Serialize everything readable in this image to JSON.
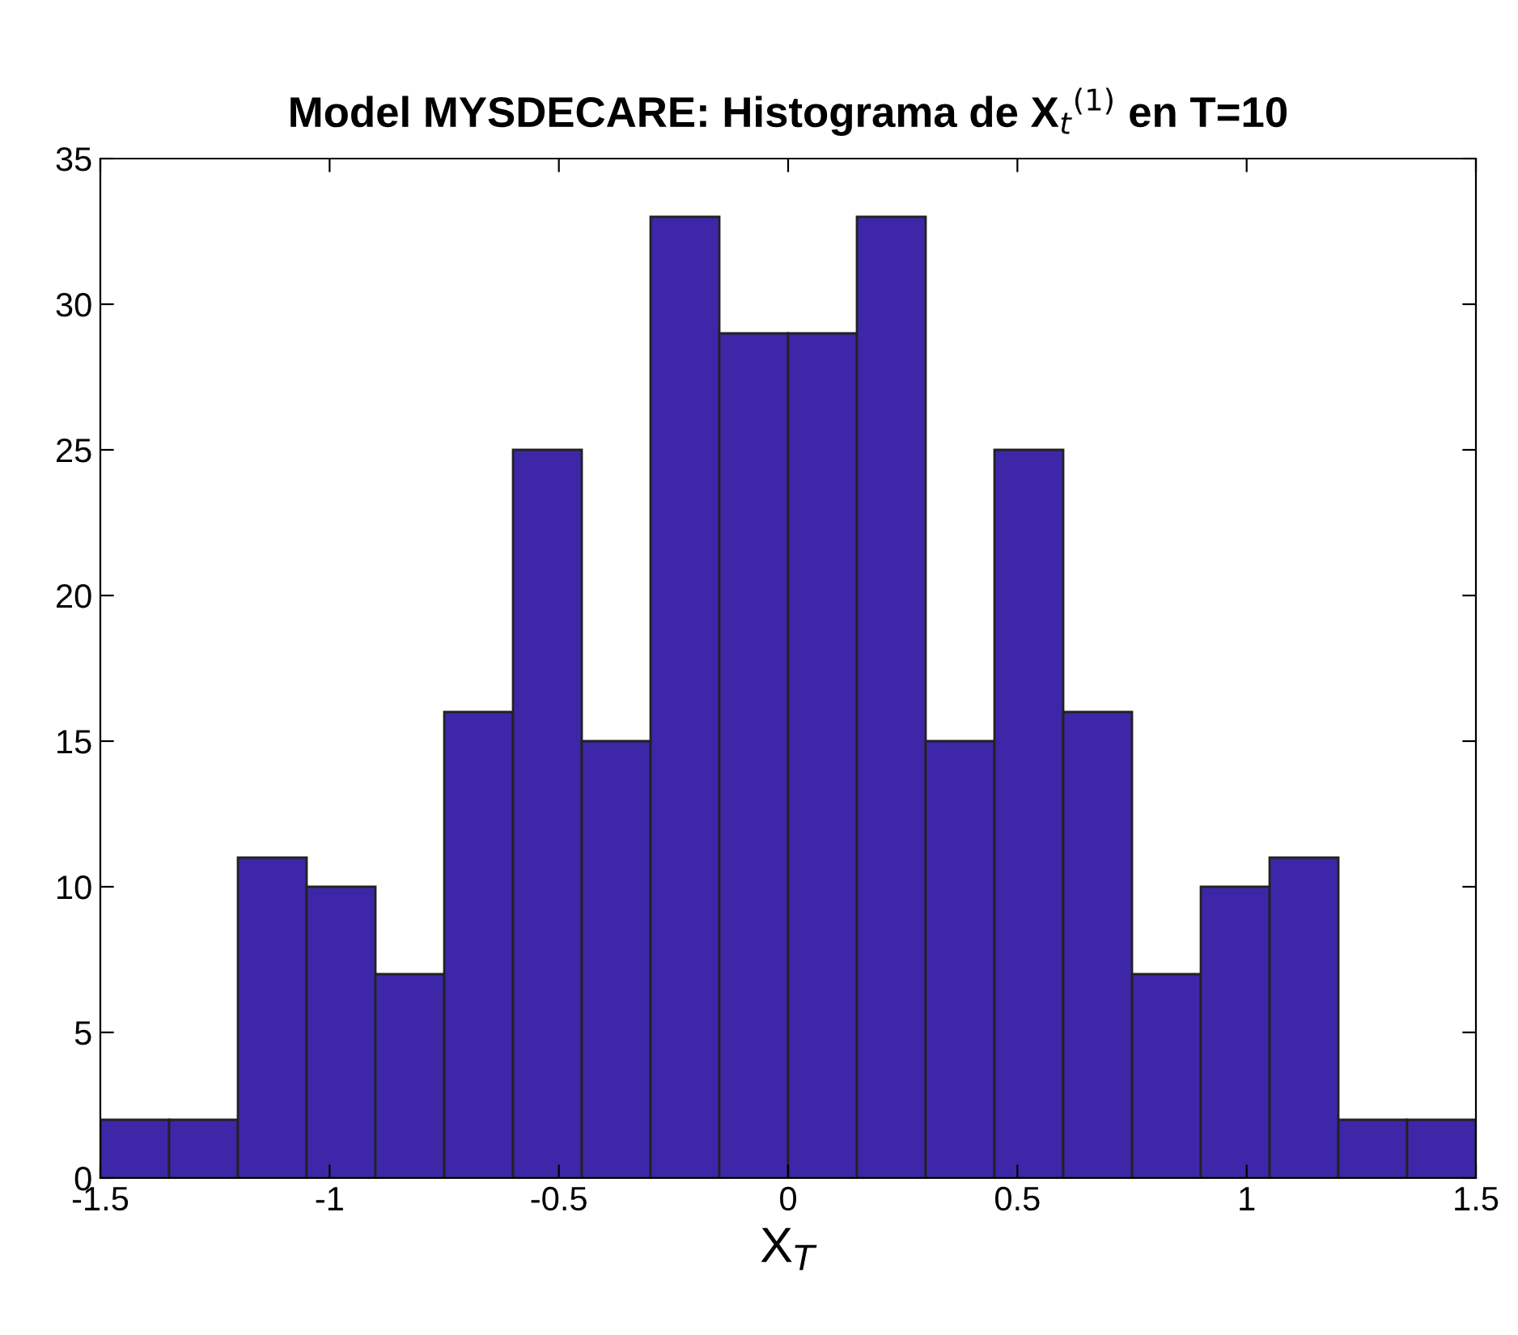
{
  "chart_data": {
    "type": "histogram",
    "title": "Model MYSDECARE: Histograma de X$_{t}$$^{(1)}$ en T=10",
    "xlabel": "X$_{T}$",
    "bins": [
      -1.5,
      -1.35,
      -1.2,
      -1.05,
      -0.9,
      -0.75,
      -0.6,
      -0.45,
      -0.3,
      -0.15,
      0,
      0.15,
      0.3,
      0.45,
      0.6,
      0.75,
      0.9,
      1.05,
      1.2,
      1.35,
      1.5
    ],
    "values": [
      2,
      2,
      11,
      10,
      7,
      16,
      25,
      15,
      33,
      29,
      29,
      33,
      15,
      25,
      16,
      7,
      10,
      11,
      2,
      2
    ],
    "color": "#3d27a8",
    "xlim": [
      -1.5,
      1.5
    ],
    "xticks": [
      -1.5,
      -1,
      -0.5,
      0,
      0.5,
      1,
      1.5
    ],
    "ylim": [
      0,
      35
    ],
    "yticks": [
      0,
      5,
      10,
      15,
      20,
      25,
      30,
      35
    ],
    "grid": false
  }
}
